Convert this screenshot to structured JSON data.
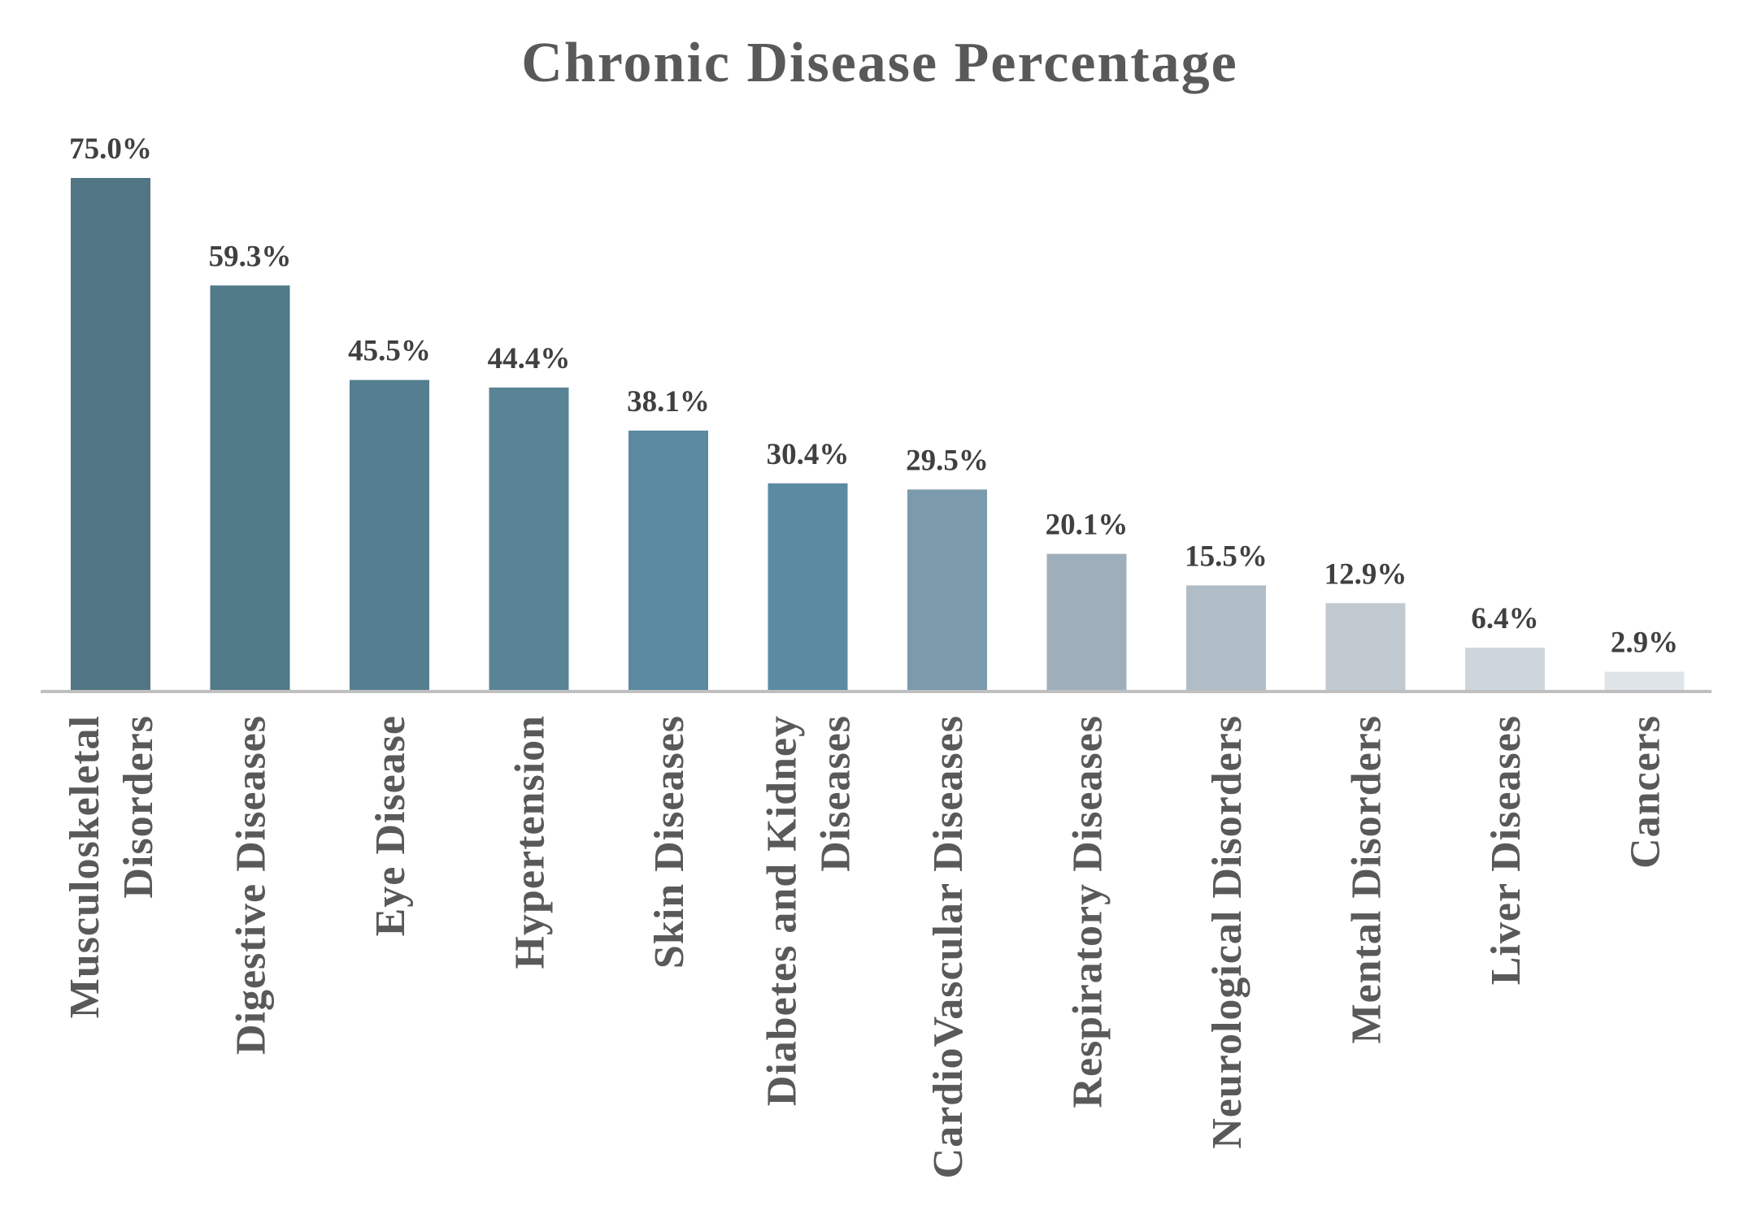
{
  "chart_data": {
    "type": "bar",
    "title": "Chronic Disease Percentage",
    "xlabel": "",
    "ylabel": "",
    "ylim": [
      0,
      75
    ],
    "grid": false,
    "legend": "none",
    "categories": [
      "Musculoskeletal Disorders",
      "Digestive Diseases",
      "Eye Disease",
      "Hypertension",
      "Skin Diseases",
      "Diabetes and Kidney Diseases",
      "CardioVascular Diseases",
      "Respiratory Diseases",
      "Neurological Disorders",
      "Mental Disorders",
      "Liver Diseases",
      "Cancers"
    ],
    "category_lines": [
      [
        "Musculoskeletal",
        "Disorders"
      ],
      [
        "Digestive Diseases"
      ],
      [
        "Eye Disease"
      ],
      [
        "Hypertension"
      ],
      [
        "Skin Diseases"
      ],
      [
        "Diabetes and Kidney",
        "Diseases"
      ],
      [
        "CardioVascular Diseases"
      ],
      [
        "Respiratory Diseases"
      ],
      [
        "Neurological Disorders"
      ],
      [
        "Mental Disorders"
      ],
      [
        "Liver Diseases"
      ],
      [
        "Cancers"
      ]
    ],
    "values": [
      75.0,
      59.3,
      45.5,
      44.4,
      38.1,
      30.4,
      29.5,
      20.1,
      15.5,
      12.9,
      6.4,
      2.9
    ],
    "value_labels": [
      "75.0%",
      "59.3%",
      "45.5%",
      "44.4%",
      "38.1%",
      "30.4%",
      "29.5%",
      "20.1%",
      "15.5%",
      "12.9%",
      "6.4%",
      "2.9%"
    ],
    "colors": [
      "#517582",
      "#517a89",
      "#557f90",
      "#588495",
      "#5a89a0",
      "#5b8ba3",
      "#7b9aac",
      "#9eafbb",
      "#b1bdc6",
      "#c1c9d1",
      "#ced6dd",
      "#dfe4e8"
    ],
    "axis_color": "#bfbfbf"
  }
}
